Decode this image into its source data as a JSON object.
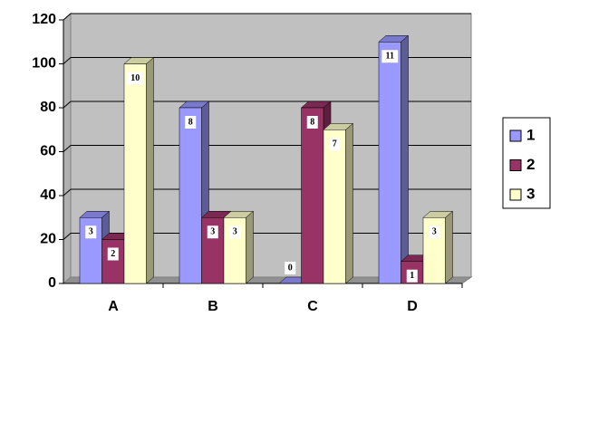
{
  "chart_data": {
    "type": "bar3d",
    "categories": [
      "A",
      "B",
      "C",
      "D"
    ],
    "series": [
      {
        "name": "1",
        "color": "#9999ff",
        "values": [
          30,
          80,
          0,
          110
        ],
        "labels": [
          "3",
          "8",
          "0",
          "11"
        ]
      },
      {
        "name": "2",
        "color": "#993366",
        "values": [
          20,
          30,
          80,
          10
        ],
        "labels": [
          "2",
          "3",
          "8",
          "1"
        ]
      },
      {
        "name": "3",
        "color": "#ffffcc",
        "values": [
          100,
          30,
          70,
          30
        ],
        "labels": [
          "10",
          "3",
          "7",
          "3"
        ]
      }
    ],
    "ylim": [
      0,
      120
    ],
    "yticks": [
      0,
      20,
      40,
      60,
      80,
      100,
      120
    ],
    "grid": true,
    "legend": "right"
  }
}
